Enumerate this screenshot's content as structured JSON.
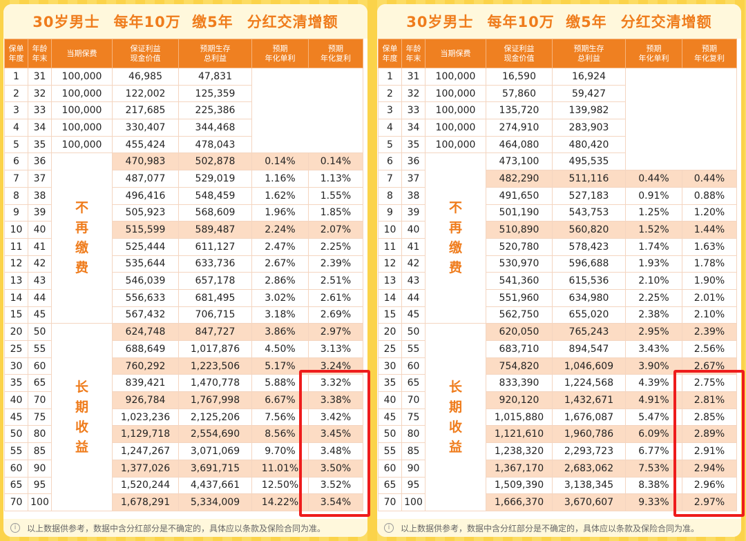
{
  "title_segments": [
    "30岁男士",
    "每年10万 缴5年",
    "分红交清增额"
  ],
  "headers": [
    "保单\n年度",
    "年龄\n年末",
    "当期保费",
    "保证利益\n现金价值",
    "预期生存\n总利益",
    "预期\n年化单利",
    "预期\n年化复利"
  ],
  "merged_labels": {
    "stop_paying": "不再缴费",
    "long_term": "长期收益"
  },
  "footnote": "以上数据供参考，数据中含分红部分是不确定的，具体应以条款及保险合同为准。",
  "accent_color": "#ef8021",
  "highlight_color": "#ee1c1c",
  "left_table": {
    "highlighted_years": [
      "6",
      "10",
      "20",
      "30",
      "40",
      "50",
      "60",
      "70"
    ],
    "rows": [
      [
        "1",
        "31",
        "100,000",
        "46,985",
        "47,831",
        "",
        ""
      ],
      [
        "2",
        "32",
        "100,000",
        "122,002",
        "125,359",
        "",
        ""
      ],
      [
        "3",
        "33",
        "100,000",
        "217,685",
        "225,386",
        "",
        ""
      ],
      [
        "4",
        "34",
        "100,000",
        "330,407",
        "344,468",
        "",
        ""
      ],
      [
        "5",
        "35",
        "100,000",
        "455,424",
        "478,043",
        "",
        ""
      ],
      [
        "6",
        "36",
        "",
        "470,983",
        "502,878",
        "0.14%",
        "0.14%"
      ],
      [
        "7",
        "37",
        "",
        "487,077",
        "529,019",
        "1.16%",
        "1.13%"
      ],
      [
        "8",
        "38",
        "",
        "496,416",
        "548,459",
        "1.62%",
        "1.55%"
      ],
      [
        "9",
        "39",
        "",
        "505,923",
        "568,609",
        "1.96%",
        "1.85%"
      ],
      [
        "10",
        "40",
        "",
        "515,599",
        "589,487",
        "2.24%",
        "2.07%"
      ],
      [
        "11",
        "41",
        "",
        "525,444",
        "611,127",
        "2.47%",
        "2.25%"
      ],
      [
        "12",
        "42",
        "",
        "535,644",
        "633,736",
        "2.67%",
        "2.39%"
      ],
      [
        "13",
        "43",
        "",
        "546,039",
        "657,178",
        "2.86%",
        "2.51%"
      ],
      [
        "14",
        "44",
        "",
        "556,633",
        "681,495",
        "3.02%",
        "2.61%"
      ],
      [
        "15",
        "45",
        "",
        "567,432",
        "706,715",
        "3.18%",
        "2.69%"
      ],
      [
        "20",
        "50",
        "",
        "624,748",
        "847,727",
        "3.86%",
        "2.97%"
      ],
      [
        "25",
        "55",
        "",
        "688,649",
        "1,017,876",
        "4.50%",
        "3.13%"
      ],
      [
        "30",
        "60",
        "",
        "760,292",
        "1,223,506",
        "5.17%",
        "3.24%"
      ],
      [
        "35",
        "65",
        "",
        "839,421",
        "1,470,778",
        "5.88%",
        "3.32%"
      ],
      [
        "40",
        "70",
        "",
        "926,784",
        "1,767,998",
        "6.67%",
        "3.38%"
      ],
      [
        "45",
        "75",
        "",
        "1,023,236",
        "2,125,206",
        "7.56%",
        "3.42%"
      ],
      [
        "50",
        "80",
        "",
        "1,129,718",
        "2,554,690",
        "8.56%",
        "3.45%"
      ],
      [
        "55",
        "85",
        "",
        "1,247,267",
        "3,071,069",
        "9.70%",
        "3.48%"
      ],
      [
        "60",
        "90",
        "",
        "1,377,026",
        "3,691,715",
        "11.01%",
        "3.50%"
      ],
      [
        "65",
        "95",
        "",
        "1,520,244",
        "4,437,661",
        "12.50%",
        "3.52%"
      ],
      [
        "70",
        "100",
        "",
        "1,678,291",
        "5,334,009",
        "14.22%",
        "3.54%"
      ]
    ]
  },
  "right_table": {
    "highlighted_years": [
      "7",
      "10",
      "20",
      "30",
      "40",
      "50",
      "60",
      "70"
    ],
    "rows": [
      [
        "1",
        "31",
        "100,000",
        "16,590",
        "16,924",
        "",
        ""
      ],
      [
        "2",
        "32",
        "100,000",
        "57,860",
        "59,427",
        "",
        ""
      ],
      [
        "3",
        "33",
        "100,000",
        "135,720",
        "139,982",
        "",
        ""
      ],
      [
        "4",
        "34",
        "100,000",
        "274,910",
        "283,903",
        "",
        ""
      ],
      [
        "5",
        "35",
        "100,000",
        "464,080",
        "480,420",
        "",
        ""
      ],
      [
        "6",
        "36",
        "",
        "473,100",
        "495,535",
        "",
        ""
      ],
      [
        "7",
        "37",
        "",
        "482,290",
        "511,116",
        "0.44%",
        "0.44%"
      ],
      [
        "8",
        "38",
        "",
        "491,650",
        "527,183",
        "0.91%",
        "0.88%"
      ],
      [
        "9",
        "39",
        "",
        "501,190",
        "543,753",
        "1.25%",
        "1.20%"
      ],
      [
        "10",
        "40",
        "",
        "510,890",
        "560,820",
        "1.52%",
        "1.44%"
      ],
      [
        "11",
        "41",
        "",
        "520,780",
        "578,423",
        "1.74%",
        "1.63%"
      ],
      [
        "12",
        "42",
        "",
        "530,970",
        "596,688",
        "1.93%",
        "1.78%"
      ],
      [
        "13",
        "43",
        "",
        "541,360",
        "615,536",
        "2.10%",
        "1.90%"
      ],
      [
        "14",
        "44",
        "",
        "551,960",
        "634,980",
        "2.25%",
        "2.01%"
      ],
      [
        "15",
        "45",
        "",
        "562,750",
        "655,020",
        "2.38%",
        "2.10%"
      ],
      [
        "20",
        "50",
        "",
        "620,050",
        "765,243",
        "2.95%",
        "2.39%"
      ],
      [
        "25",
        "55",
        "",
        "683,710",
        "894,547",
        "3.43%",
        "2.56%"
      ],
      [
        "30",
        "60",
        "",
        "754,820",
        "1,046,609",
        "3.90%",
        "2.67%"
      ],
      [
        "35",
        "65",
        "",
        "833,390",
        "1,224,568",
        "4.39%",
        "2.75%"
      ],
      [
        "40",
        "70",
        "",
        "920,120",
        "1,432,671",
        "4.91%",
        "2.81%"
      ],
      [
        "45",
        "75",
        "",
        "1,015,880",
        "1,676,087",
        "5.47%",
        "2.85%"
      ],
      [
        "50",
        "80",
        "",
        "1,121,610",
        "1,960,786",
        "6.09%",
        "2.89%"
      ],
      [
        "55",
        "85",
        "",
        "1,238,320",
        "2,293,723",
        "6.77%",
        "2.91%"
      ],
      [
        "60",
        "90",
        "",
        "1,367,170",
        "2,683,062",
        "7.53%",
        "2.94%"
      ],
      [
        "65",
        "95",
        "",
        "1,509,390",
        "3,138,345",
        "8.38%",
        "2.96%"
      ],
      [
        "70",
        "100",
        "",
        "1,666,370",
        "3,670,607",
        "9.33%",
        "2.97%"
      ]
    ]
  }
}
